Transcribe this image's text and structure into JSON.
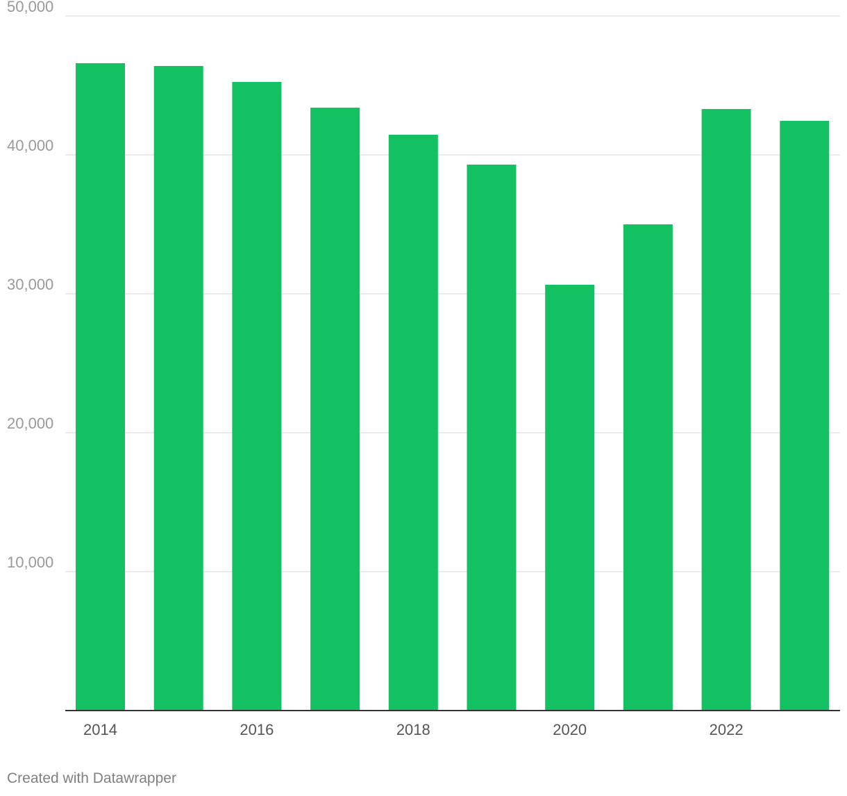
{
  "chart_data": {
    "type": "bar",
    "categories": [
      "2014",
      "2015",
      "2016",
      "2017",
      "2018",
      "2019",
      "2020",
      "2021",
      "2022",
      "2023"
    ],
    "values": [
      46600,
      46400,
      45250,
      43400,
      41450,
      39300,
      30650,
      35000,
      43300,
      42450
    ],
    "x_tick_labels": [
      "2014",
      "2016",
      "2018",
      "2020",
      "2022"
    ],
    "y_ticks": [
      10000,
      20000,
      30000,
      40000,
      50000
    ],
    "y_tick_labels": [
      "10,000",
      "20,000",
      "30,000",
      "40,000",
      "50,000"
    ],
    "ylim": [
      0,
      50000
    ],
    "grid": true,
    "bar_color": "#14c162",
    "title": "",
    "xlabel": "",
    "ylabel": ""
  },
  "footer": {
    "credit": "Created with Datawrapper"
  }
}
